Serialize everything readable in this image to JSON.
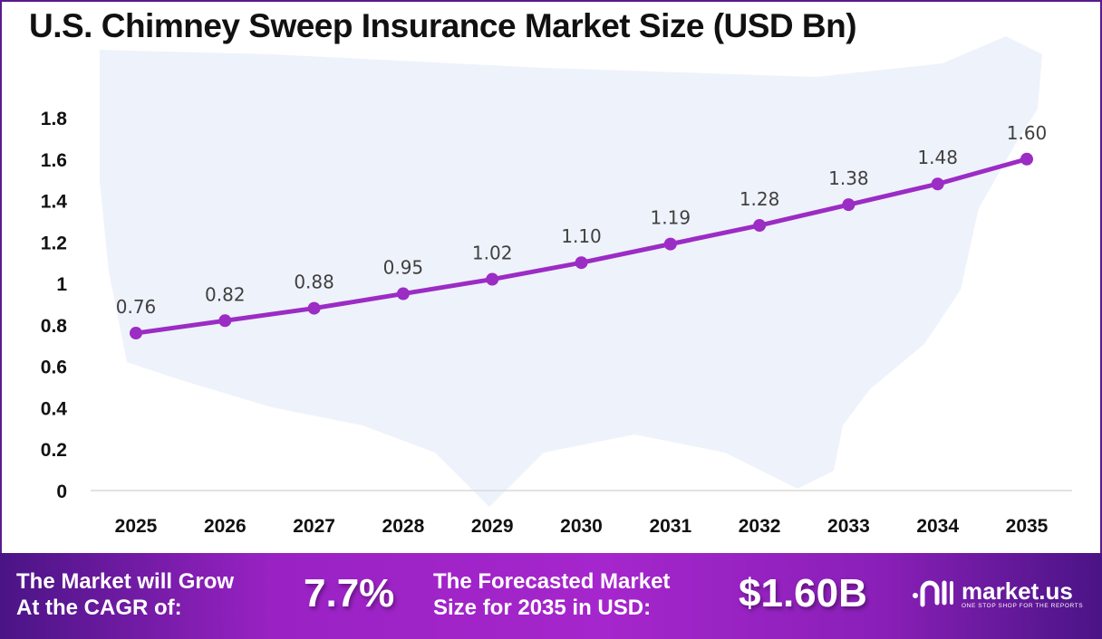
{
  "chart_data": {
    "type": "line",
    "title": "U.S. Chimney Sweep Insurance Market Size (USD Bn)",
    "categories": [
      "2025",
      "2026",
      "2027",
      "2028",
      "2029",
      "2030",
      "2031",
      "2032",
      "2033",
      "2034",
      "2035"
    ],
    "values": [
      0.76,
      0.82,
      0.88,
      0.95,
      1.02,
      1.1,
      1.19,
      1.28,
      1.38,
      1.48,
      1.6
    ],
    "data_labels": [
      "0.76",
      "0.82",
      "0.88",
      "0.95",
      "1.02",
      "1.10",
      "1.19",
      "1.28",
      "1.38",
      "1.48",
      "1.60"
    ],
    "yticks": [
      "0",
      "0.2",
      "0.4",
      "0.6",
      "0.8",
      "1",
      "1.2",
      "1.4",
      "1.6",
      "1.8"
    ],
    "ylim": [
      0,
      1.8
    ],
    "grid": false,
    "line_color": "#9b2cc4",
    "background": "US map silhouette"
  },
  "footer": {
    "cagr_label_1": "The Market will Grow",
    "cagr_label_2": "At the CAGR of:",
    "cagr_value": "7.7%",
    "forecast_label_1": "The Forecasted Market",
    "forecast_label_2": "Size for 2035 in USD:",
    "forecast_value": "$1.60B",
    "logo_name": "market.us",
    "logo_tagline": "ONE STOP SHOP FOR THE REPORTS"
  }
}
